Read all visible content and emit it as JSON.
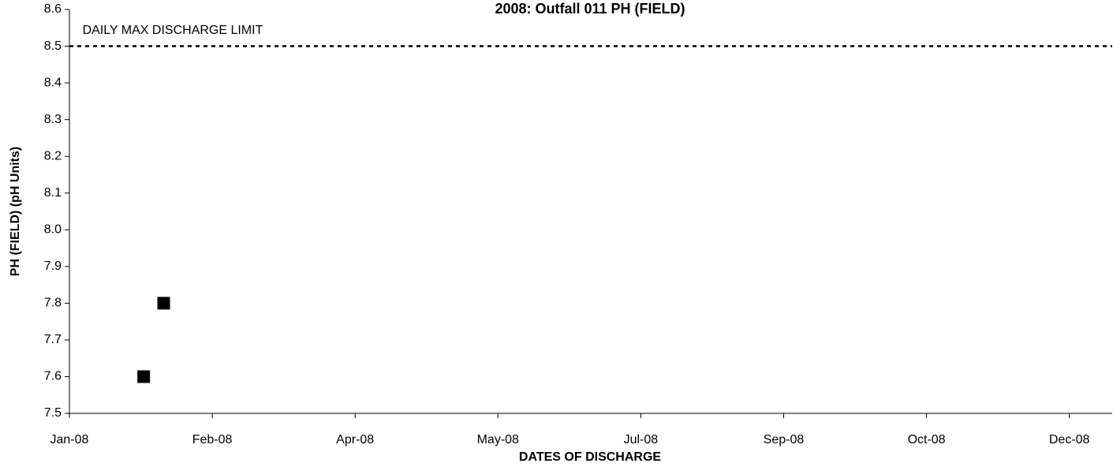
{
  "chart_data": {
    "type": "scatter",
    "title": "2008: Outfall 011 PH (FIELD)",
    "x_label": "DATES OF DISCHARGE",
    "y_label": "PH (FIELD) (pH Units)",
    "series": [
      {
        "name": "PH (FIELD)",
        "color": "#000000",
        "x": [
          39474,
          39481
        ],
        "values": [
          7.6,
          7.8
        ]
      }
    ],
    "xlim": [
      39448,
      39813
    ],
    "xticks": [
      {
        "value": 39448,
        "label": "Jan-08"
      },
      {
        "value": 39498,
        "label": "Feb-08"
      },
      {
        "value": 39548,
        "label": "Apr-08"
      },
      {
        "value": 39598,
        "label": "May-08"
      },
      {
        "value": 39648,
        "label": "Jul-08"
      },
      {
        "value": 39698,
        "label": "Sep-08"
      },
      {
        "value": 39748,
        "label": "Oct-08"
      },
      {
        "value": 39798,
        "label": "Dec-08"
      }
    ],
    "ylim": [
      7.5,
      8.6
    ],
    "yticks": [
      7.5,
      7.6,
      7.7,
      7.8,
      7.9,
      {
        "value": 8.0,
        "label": "8.0"
      },
      8.1,
      8.2,
      8.3,
      8.4,
      8.5,
      8.6
    ],
    "reference_lines": [
      {
        "value": 8.5,
        "label": "DAILY MAX DISCHARGE LIMIT"
      }
    ],
    "grid": false
  }
}
